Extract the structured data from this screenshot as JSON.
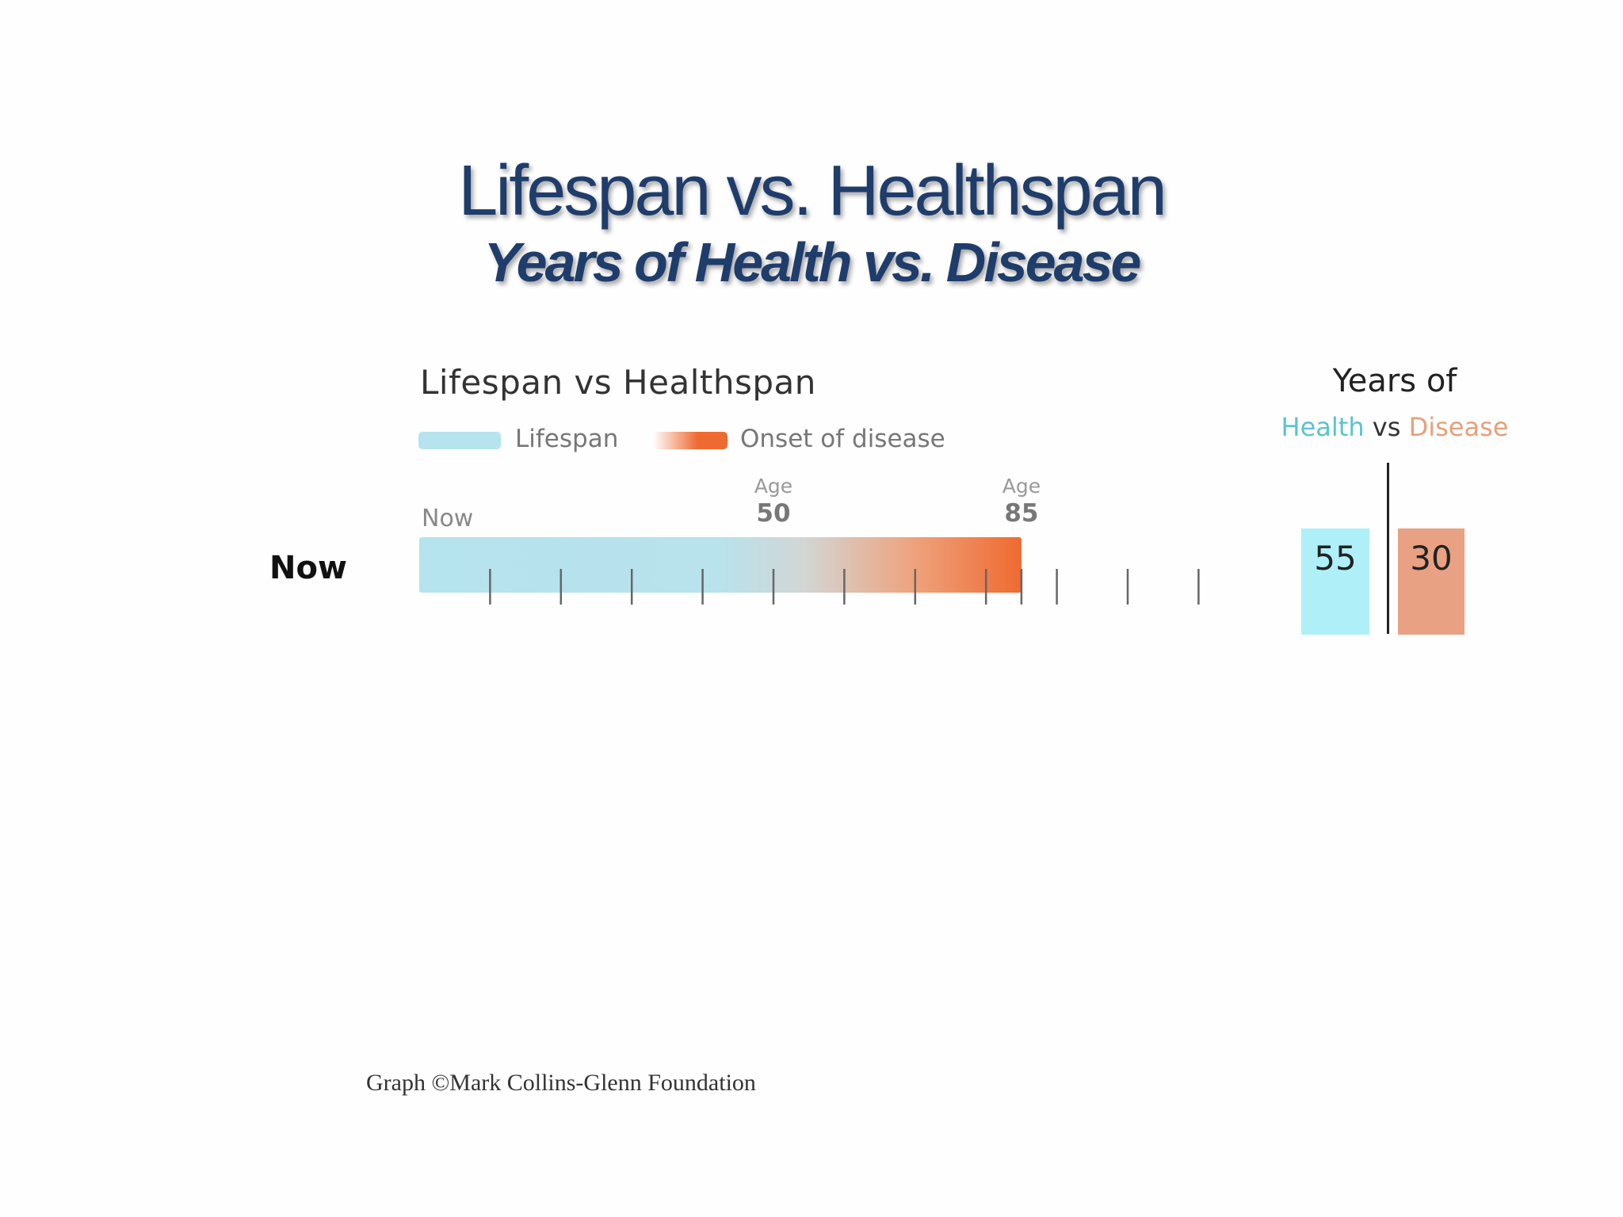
{
  "title": "Lifespan vs. Healthspan",
  "subtitle": "Years of Health vs. Disease",
  "colors": {
    "lifespan": "#b5e3ee",
    "disease": "#ef6a30",
    "health_bar": "#aff0f8",
    "disease_bar": "#e8a183",
    "title": "#1f3d6b"
  },
  "chart_data": [
    {
      "type": "bar",
      "title": "Lifespan vs Healthspan",
      "legend": [
        "Lifespan",
        "Onset of disease"
      ],
      "row_label": "Now",
      "start_label": "Now",
      "markers": [
        {
          "prefix": "Age",
          "value": 50
        },
        {
          "prefix": "Age",
          "value": 85
        }
      ],
      "healthy_years": 50,
      "lifespan_years": 85,
      "tick_interval": 10,
      "xlim": [
        0,
        110
      ]
    },
    {
      "type": "bar",
      "title": "Years of",
      "categories": [
        "Health",
        "Disease"
      ],
      "connector": "vs",
      "values": [
        55,
        30
      ]
    }
  ],
  "credit": "Graph ©Mark Collins-Glenn Foundation"
}
